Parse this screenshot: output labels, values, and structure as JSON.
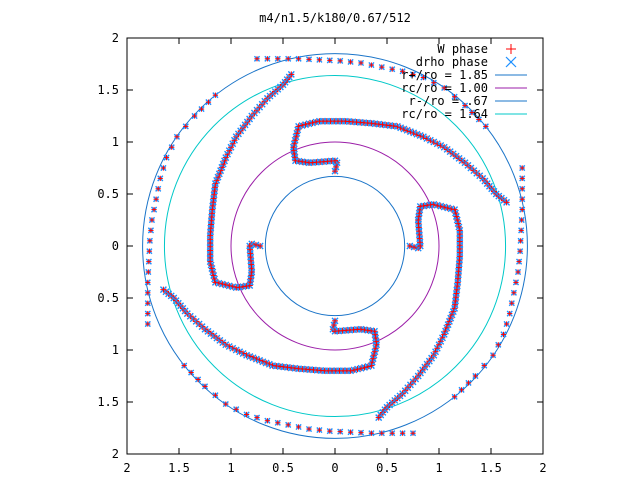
{
  "chart_data": {
    "type": "scatter",
    "title": "m4/n1.5/k180/0.67/512",
    "xlabel": "",
    "ylabel": "",
    "xlim": [
      -2,
      2
    ],
    "ylim": [
      -2,
      2
    ],
    "xtick_values": [
      -2,
      -1.5,
      -1,
      -0.5,
      0,
      0.5,
      1,
      1.5,
      2
    ],
    "xtick_labels": [
      "2",
      "1.5",
      "1",
      "0.5",
      "0",
      "0.5",
      "1",
      "1.5",
      "2"
    ],
    "ytick_values": [
      2,
      1.5,
      1,
      0.5,
      0,
      -0.5,
      -1,
      -1.5,
      -2
    ],
    "ytick_labels": [
      "2",
      "1.5",
      "1",
      "0.5",
      "0",
      "0.5",
      "1",
      "1.5",
      "2"
    ],
    "grid": false,
    "legend_position": "top-right",
    "series": [
      {
        "name": "W phase",
        "marker": "plus",
        "color": "#ff0000"
      },
      {
        "name": "drho phase",
        "marker": "cross",
        "color": "#1e90ff"
      }
    ],
    "circles": [
      {
        "name": "r+/ro = 1.85",
        "radius": 1.85,
        "color": "#1a74c8"
      },
      {
        "name": "rc/ro = 1.00",
        "radius": 1.0,
        "color": "#9b1ea8"
      },
      {
        "name": "r-/ro = .67",
        "radius": 0.67,
        "color": "#1a74c8"
      },
      {
        "name": "rc/ro = 1.64",
        "radius": 1.64,
        "color": "#00c8c8"
      }
    ],
    "arms": [
      {
        "x": [
          0.0,
          -0.02,
          0.0,
          0.25,
          0.38,
          0.4,
          0.35,
          0.15,
          -0.1,
          -0.35,
          -0.6,
          -0.85,
          -1.05,
          -1.25,
          -1.42,
          -1.55,
          -1.65
        ],
        "y": [
          -0.72,
          -0.8,
          -0.82,
          -0.8,
          -0.82,
          -0.95,
          -1.15,
          -1.2,
          -1.2,
          -1.18,
          -1.15,
          -1.05,
          -0.95,
          -0.8,
          -0.65,
          -0.5,
          -0.42
        ]
      },
      {
        "x": [
          0.72,
          0.8,
          0.82,
          0.8,
          0.82,
          0.95,
          1.15,
          1.2,
          1.2,
          1.18,
          1.15,
          1.05,
          0.95,
          0.8,
          0.65,
          0.5,
          0.42
        ],
        "y": [
          0.0,
          -0.02,
          0.0,
          0.25,
          0.38,
          0.4,
          0.35,
          0.15,
          -0.1,
          -0.35,
          -0.6,
          -0.85,
          -1.05,
          -1.25,
          -1.42,
          -1.55,
          -1.65
        ]
      },
      {
        "x": [
          0.0,
          0.02,
          0.0,
          -0.25,
          -0.38,
          -0.4,
          -0.35,
          -0.15,
          0.1,
          0.35,
          0.6,
          0.85,
          1.05,
          1.25,
          1.42,
          1.55,
          1.65
        ],
        "y": [
          0.72,
          0.8,
          0.82,
          0.8,
          0.82,
          0.95,
          1.15,
          1.2,
          1.2,
          1.18,
          1.15,
          1.05,
          0.95,
          0.8,
          0.65,
          0.5,
          0.42
        ]
      },
      {
        "x": [
          -0.72,
          -0.8,
          -0.82,
          -0.8,
          -0.82,
          -0.95,
          -1.15,
          -1.2,
          -1.2,
          -1.18,
          -1.15,
          -1.05,
          -0.95,
          -0.8,
          -0.65,
          -0.5,
          -0.42
        ],
        "y": [
          0.0,
          0.02,
          0.0,
          -0.25,
          -0.38,
          -0.4,
          -0.35,
          -0.15,
          0.1,
          0.35,
          0.6,
          0.85,
          1.05,
          1.25,
          1.42,
          1.55,
          1.65
        ]
      }
    ],
    "outer_arms": [
      {
        "x": [
          -1.45,
          -1.25,
          -1.05,
          -0.85,
          -0.65,
          -0.45,
          -0.25,
          -0.05,
          0.15,
          0.35,
          0.55,
          0.75
        ],
        "y": [
          -1.15,
          -1.35,
          -1.52,
          -1.62,
          -1.68,
          -1.72,
          -1.76,
          -1.78,
          -1.79,
          -1.8,
          -1.8,
          -1.8
        ]
      },
      {
        "x": [
          1.15,
          1.35,
          1.52,
          1.62,
          1.68,
          1.72,
          1.76,
          1.78,
          1.79,
          1.8,
          1.8,
          1.8
        ],
        "y": [
          -1.45,
          -1.25,
          -1.05,
          -0.85,
          -0.65,
          -0.45,
          -0.25,
          -0.05,
          0.15,
          0.35,
          0.55,
          0.75
        ]
      },
      {
        "x": [
          1.45,
          1.25,
          1.05,
          0.85,
          0.65,
          0.45,
          0.25,
          0.05,
          -0.15,
          -0.35,
          -0.55,
          -0.75
        ],
        "y": [
          1.15,
          1.35,
          1.52,
          1.62,
          1.68,
          1.72,
          1.76,
          1.78,
          1.79,
          1.8,
          1.8,
          1.8
        ]
      },
      {
        "x": [
          -1.15,
          -1.35,
          -1.52,
          -1.62,
          -1.68,
          -1.72,
          -1.76,
          -1.78,
          -1.79,
          -1.8,
          -1.8,
          -1.8
        ],
        "y": [
          1.45,
          1.25,
          1.05,
          0.85,
          0.65,
          0.45,
          0.25,
          0.05,
          -0.15,
          -0.35,
          -0.55,
          -0.75
        ]
      }
    ]
  }
}
